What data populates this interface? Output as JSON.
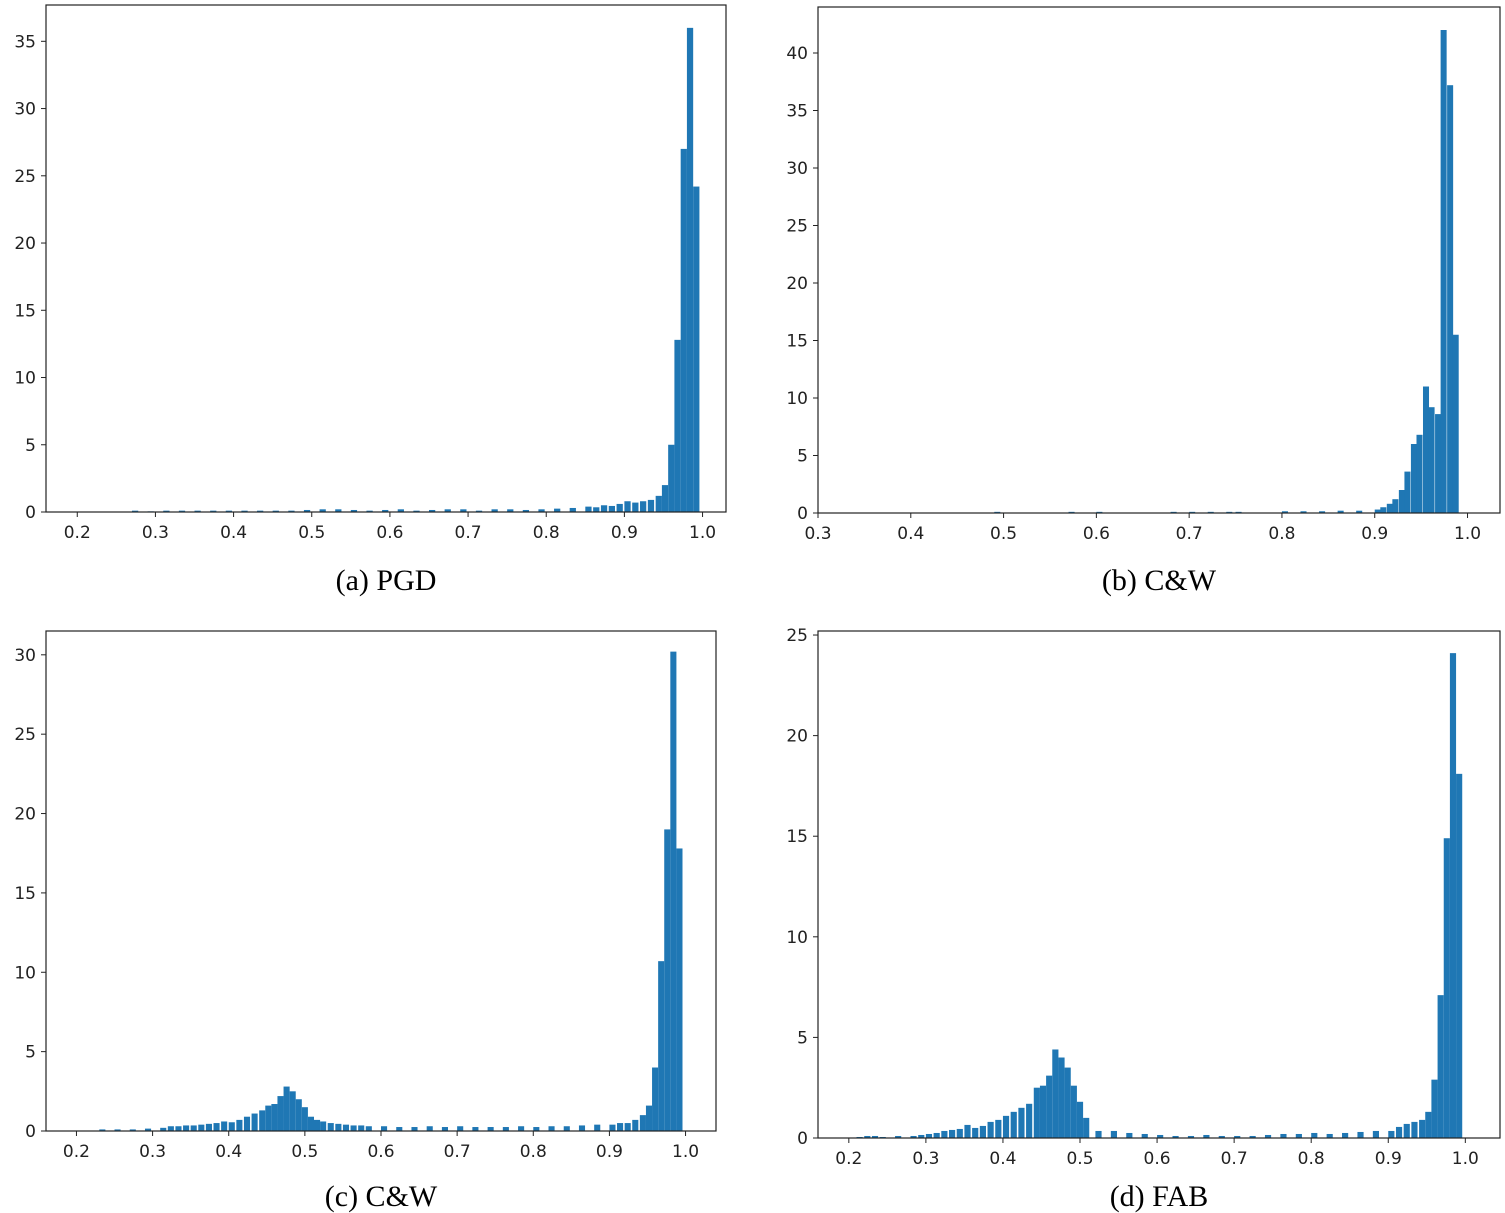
{
  "chart_data": [
    {
      "id": "a",
      "type": "bar",
      "caption": "(a) PGD",
      "bar_color": "#1f77b4",
      "xlim": [
        0.16,
        1.03
      ],
      "ylim": [
        0,
        37.7
      ],
      "xticks": [
        0.2,
        0.3,
        0.4,
        0.5,
        0.6,
        0.7,
        0.8,
        0.9,
        1.0
      ],
      "xtick_labels": [
        "0.2",
        "0.3",
        "0.4",
        "0.5",
        "0.6",
        "0.7",
        "0.8",
        "0.9",
        "1.0"
      ],
      "yticks": [
        0,
        5,
        10,
        15,
        20,
        25,
        30,
        35
      ],
      "ytick_labels": [
        "0",
        "5",
        "10",
        "15",
        "20",
        "25",
        "30",
        "35"
      ],
      "bin_width": 0.008,
      "bins_x": [
        0.27,
        0.29,
        0.31,
        0.33,
        0.35,
        0.37,
        0.39,
        0.41,
        0.43,
        0.45,
        0.47,
        0.49,
        0.51,
        0.53,
        0.55,
        0.57,
        0.59,
        0.61,
        0.63,
        0.65,
        0.67,
        0.69,
        0.71,
        0.73,
        0.75,
        0.77,
        0.79,
        0.81,
        0.83,
        0.85,
        0.86,
        0.87,
        0.88,
        0.89,
        0.9,
        0.91,
        0.92,
        0.93,
        0.94,
        0.948,
        0.956,
        0.964,
        0.972,
        0.98,
        0.988
      ],
      "values": [
        0.1,
        0.05,
        0.1,
        0.1,
        0.1,
        0.1,
        0.1,
        0.1,
        0.1,
        0.1,
        0.1,
        0.15,
        0.2,
        0.2,
        0.15,
        0.1,
        0.15,
        0.2,
        0.1,
        0.15,
        0.2,
        0.2,
        0.1,
        0.2,
        0.2,
        0.15,
        0.2,
        0.25,
        0.3,
        0.4,
        0.35,
        0.5,
        0.45,
        0.6,
        0.8,
        0.7,
        0.8,
        0.9,
        1.2,
        2.0,
        5.0,
        12.8,
        27.0,
        36.0,
        24.2
      ]
    },
    {
      "id": "b",
      "type": "bar",
      "caption": "(b) C&W",
      "bar_color": "#1f77b4",
      "xlim": [
        0.3,
        1.035
      ],
      "ylim": [
        0,
        44
      ],
      "xticks": [
        0.3,
        0.4,
        0.5,
        0.6,
        0.7,
        0.8,
        0.9,
        1.0
      ],
      "xtick_labels": [
        "0.3",
        "0.4",
        "0.5",
        "0.6",
        "0.7",
        "0.8",
        "0.9",
        "1.0"
      ],
      "yticks": [
        0,
        5,
        10,
        15,
        20,
        25,
        30,
        35,
        40
      ],
      "ytick_labels": [
        "0",
        "5",
        "10",
        "15",
        "20",
        "25",
        "30",
        "35",
        "40"
      ],
      "bin_width": 0.0065,
      "bins_x": [
        0.49,
        0.57,
        0.6,
        0.68,
        0.7,
        0.72,
        0.74,
        0.75,
        0.8,
        0.82,
        0.84,
        0.86,
        0.88,
        0.9,
        0.906,
        0.913,
        0.919,
        0.926,
        0.932,
        0.939,
        0.945,
        0.952,
        0.958,
        0.965,
        0.971,
        0.978,
        0.984,
        0.991
      ],
      "values": [
        0.1,
        0.1,
        0.1,
        0.1,
        0.1,
        0.1,
        0.1,
        0.1,
        0.15,
        0.15,
        0.15,
        0.2,
        0.2,
        0.3,
        0.5,
        0.8,
        1.2,
        2.0,
        3.6,
        6.0,
        6.8,
        11.0,
        9.2,
        8.6,
        42.0,
        37.2,
        15.5,
        0.0
      ]
    },
    {
      "id": "c",
      "type": "bar",
      "caption": "(c) C&W",
      "bar_color": "#1f77b4",
      "xlim": [
        0.16,
        1.04
      ],
      "ylim": [
        0,
        31.5
      ],
      "xticks": [
        0.2,
        0.3,
        0.4,
        0.5,
        0.6,
        0.7,
        0.8,
        0.9,
        1.0
      ],
      "xtick_labels": [
        "0.2",
        "0.3",
        "0.4",
        "0.5",
        "0.6",
        "0.7",
        "0.8",
        "0.9",
        "1.0"
      ],
      "yticks": [
        0,
        5,
        10,
        15,
        20,
        25,
        30
      ],
      "ytick_labels": [
        "0",
        "5",
        "10",
        "15",
        "20",
        "25",
        "30"
      ],
      "bin_width": 0.008,
      "bins_x": [
        0.23,
        0.25,
        0.27,
        0.29,
        0.31,
        0.32,
        0.33,
        0.34,
        0.35,
        0.36,
        0.37,
        0.38,
        0.39,
        0.4,
        0.41,
        0.42,
        0.43,
        0.44,
        0.448,
        0.456,
        0.464,
        0.472,
        0.48,
        0.488,
        0.496,
        0.504,
        0.512,
        0.52,
        0.53,
        0.54,
        0.55,
        0.56,
        0.57,
        0.58,
        0.6,
        0.62,
        0.64,
        0.66,
        0.68,
        0.7,
        0.72,
        0.74,
        0.76,
        0.78,
        0.8,
        0.82,
        0.84,
        0.86,
        0.88,
        0.9,
        0.91,
        0.92,
        0.93,
        0.94,
        0.948,
        0.956,
        0.964,
        0.972,
        0.98,
        0.988
      ],
      "values": [
        0.1,
        0.1,
        0.1,
        0.15,
        0.2,
        0.3,
        0.3,
        0.35,
        0.35,
        0.4,
        0.45,
        0.5,
        0.6,
        0.55,
        0.7,
        0.9,
        1.1,
        1.3,
        1.6,
        1.7,
        2.2,
        2.8,
        2.5,
        2.0,
        1.5,
        0.9,
        0.7,
        0.6,
        0.5,
        0.45,
        0.4,
        0.35,
        0.35,
        0.3,
        0.3,
        0.25,
        0.25,
        0.3,
        0.25,
        0.3,
        0.25,
        0.25,
        0.25,
        0.3,
        0.25,
        0.3,
        0.3,
        0.35,
        0.4,
        0.4,
        0.5,
        0.5,
        0.7,
        1.0,
        1.6,
        4.0,
        10.7,
        19.0,
        30.2,
        17.8
      ]
    },
    {
      "id": "d",
      "type": "bar",
      "caption": "(d) FAB",
      "bar_color": "#1f77b4",
      "xlim": [
        0.16,
        1.045
      ],
      "ylim": [
        0,
        25.2
      ],
      "xticks": [
        0.2,
        0.3,
        0.4,
        0.5,
        0.6,
        0.7,
        0.8,
        0.9,
        1.0
      ],
      "xtick_labels": [
        "0.2",
        "0.3",
        "0.4",
        "0.5",
        "0.6",
        "0.7",
        "0.8",
        "0.9",
        "1.0"
      ],
      "yticks": [
        0,
        5,
        10,
        15,
        20,
        25
      ],
      "ytick_labels": [
        "0",
        "5",
        "10",
        "15",
        "20",
        "25"
      ],
      "bin_width": 0.008,
      "bins_x": [
        0.21,
        0.22,
        0.23,
        0.24,
        0.26,
        0.28,
        0.29,
        0.3,
        0.31,
        0.32,
        0.33,
        0.34,
        0.35,
        0.36,
        0.37,
        0.38,
        0.39,
        0.4,
        0.41,
        0.42,
        0.43,
        0.44,
        0.448,
        0.456,
        0.464,
        0.472,
        0.48,
        0.488,
        0.496,
        0.504,
        0.52,
        0.54,
        0.56,
        0.58,
        0.6,
        0.62,
        0.64,
        0.66,
        0.68,
        0.7,
        0.72,
        0.74,
        0.76,
        0.78,
        0.8,
        0.82,
        0.84,
        0.86,
        0.88,
        0.9,
        0.91,
        0.92,
        0.93,
        0.94,
        0.948,
        0.956,
        0.964,
        0.972,
        0.98,
        0.988
      ],
      "values": [
        0.05,
        0.1,
        0.1,
        0.05,
        0.1,
        0.1,
        0.15,
        0.2,
        0.25,
        0.35,
        0.4,
        0.45,
        0.65,
        0.5,
        0.6,
        0.8,
        0.9,
        1.1,
        1.3,
        1.5,
        1.7,
        2.5,
        2.6,
        3.1,
        4.4,
        4.0,
        3.5,
        2.6,
        1.8,
        1.0,
        0.35,
        0.35,
        0.25,
        0.2,
        0.15,
        0.1,
        0.1,
        0.15,
        0.1,
        0.1,
        0.1,
        0.15,
        0.2,
        0.2,
        0.25,
        0.2,
        0.25,
        0.3,
        0.35,
        0.35,
        0.55,
        0.7,
        0.8,
        0.9,
        1.3,
        2.9,
        7.1,
        14.9,
        24.1,
        18.1
      ]
    }
  ]
}
